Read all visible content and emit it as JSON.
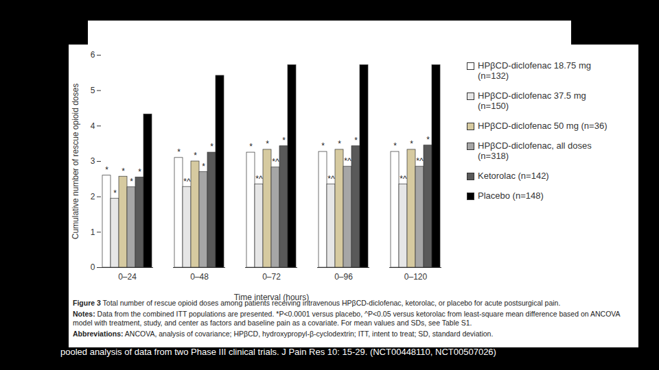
{
  "chart_data": {
    "type": "bar",
    "x_label": "Time interval (hours)",
    "y_label": "Cumulative number of rescue opioid doses",
    "categories": [
      "0–24",
      "0–48",
      "0–72",
      "0–96",
      "0–120"
    ],
    "ylim": [
      0,
      6
    ],
    "yticks": [
      0,
      1,
      2,
      3,
      4,
      5,
      6
    ],
    "legend": "right",
    "series": [
      {
        "name": "HPβCD-diclofenac 18.75 mg (n=132)",
        "color": "#ffffff",
        "values": [
          2.6,
          3.1,
          3.25,
          3.27,
          3.27
        ],
        "annotations": [
          "*",
          "*",
          "*",
          "*",
          "*"
        ]
      },
      {
        "name": "HPβCD-diclofenac 37.5 mg (n=150)",
        "color": "#e6e6e6",
        "values": [
          1.95,
          2.28,
          2.35,
          2.35,
          2.35
        ],
        "annotations": [
          "*",
          "*^",
          "*^",
          "*^",
          "*^"
        ]
      },
      {
        "name": "HPβCD-diclofenac 50 mg (n=36)",
        "color": "#d6caa0",
        "values": [
          2.57,
          3.0,
          3.33,
          3.33,
          3.33
        ],
        "annotations": [
          "*",
          "*",
          "*",
          "*",
          "*"
        ]
      },
      {
        "name": "HPβCD-diclofenac, all doses (n=318)",
        "color": "#a6a6a6",
        "values": [
          2.27,
          2.7,
          2.83,
          2.85,
          2.85
        ],
        "annotations": [
          "*",
          "*",
          "*^",
          "*^",
          "*^"
        ]
      },
      {
        "name": "Ketorolac (n=142)",
        "color": "#595959",
        "values": [
          2.55,
          3.25,
          3.43,
          3.43,
          3.45
        ],
        "annotations": [
          "*",
          "*",
          "*",
          "*",
          "*"
        ]
      },
      {
        "name": "Placebo (n=148)",
        "color": "#000000",
        "values": [
          4.33,
          5.42,
          5.72,
          5.72,
          5.72
        ],
        "annotations": [
          null,
          null,
          null,
          null,
          null
        ]
      }
    ],
    "figure_label": "Figure 3",
    "caption": "Total number of rescue opioid doses among patients receiving intravenous HPβCD-diclofenac, ketorolac, or placebo for acute postsurgical pain.",
    "notes_heading": "Notes:",
    "notes": "Data from the combined ITT populations are presented. *P<0.0001 versus placebo, ^P<0.05 versus ketorolac from least-square mean difference based on ANCOVA model with treatment, study, and center as factors and baseline pain as a covariate. For mean values and SDs, see Table S1.",
    "abbreviations_heading": "Abbreviations:",
    "abbreviations": "ANCOVA, analysis of covariance; HPβCD, hydroxypropyl-β-cyclodextrin; ITT, intent to treat; SD, standard deviation.",
    "source": "pooled analysis of data from two Phase III clinical trials.  J Pain Res 10: 15-29. (NCT00448110, NCT00507026)"
  }
}
